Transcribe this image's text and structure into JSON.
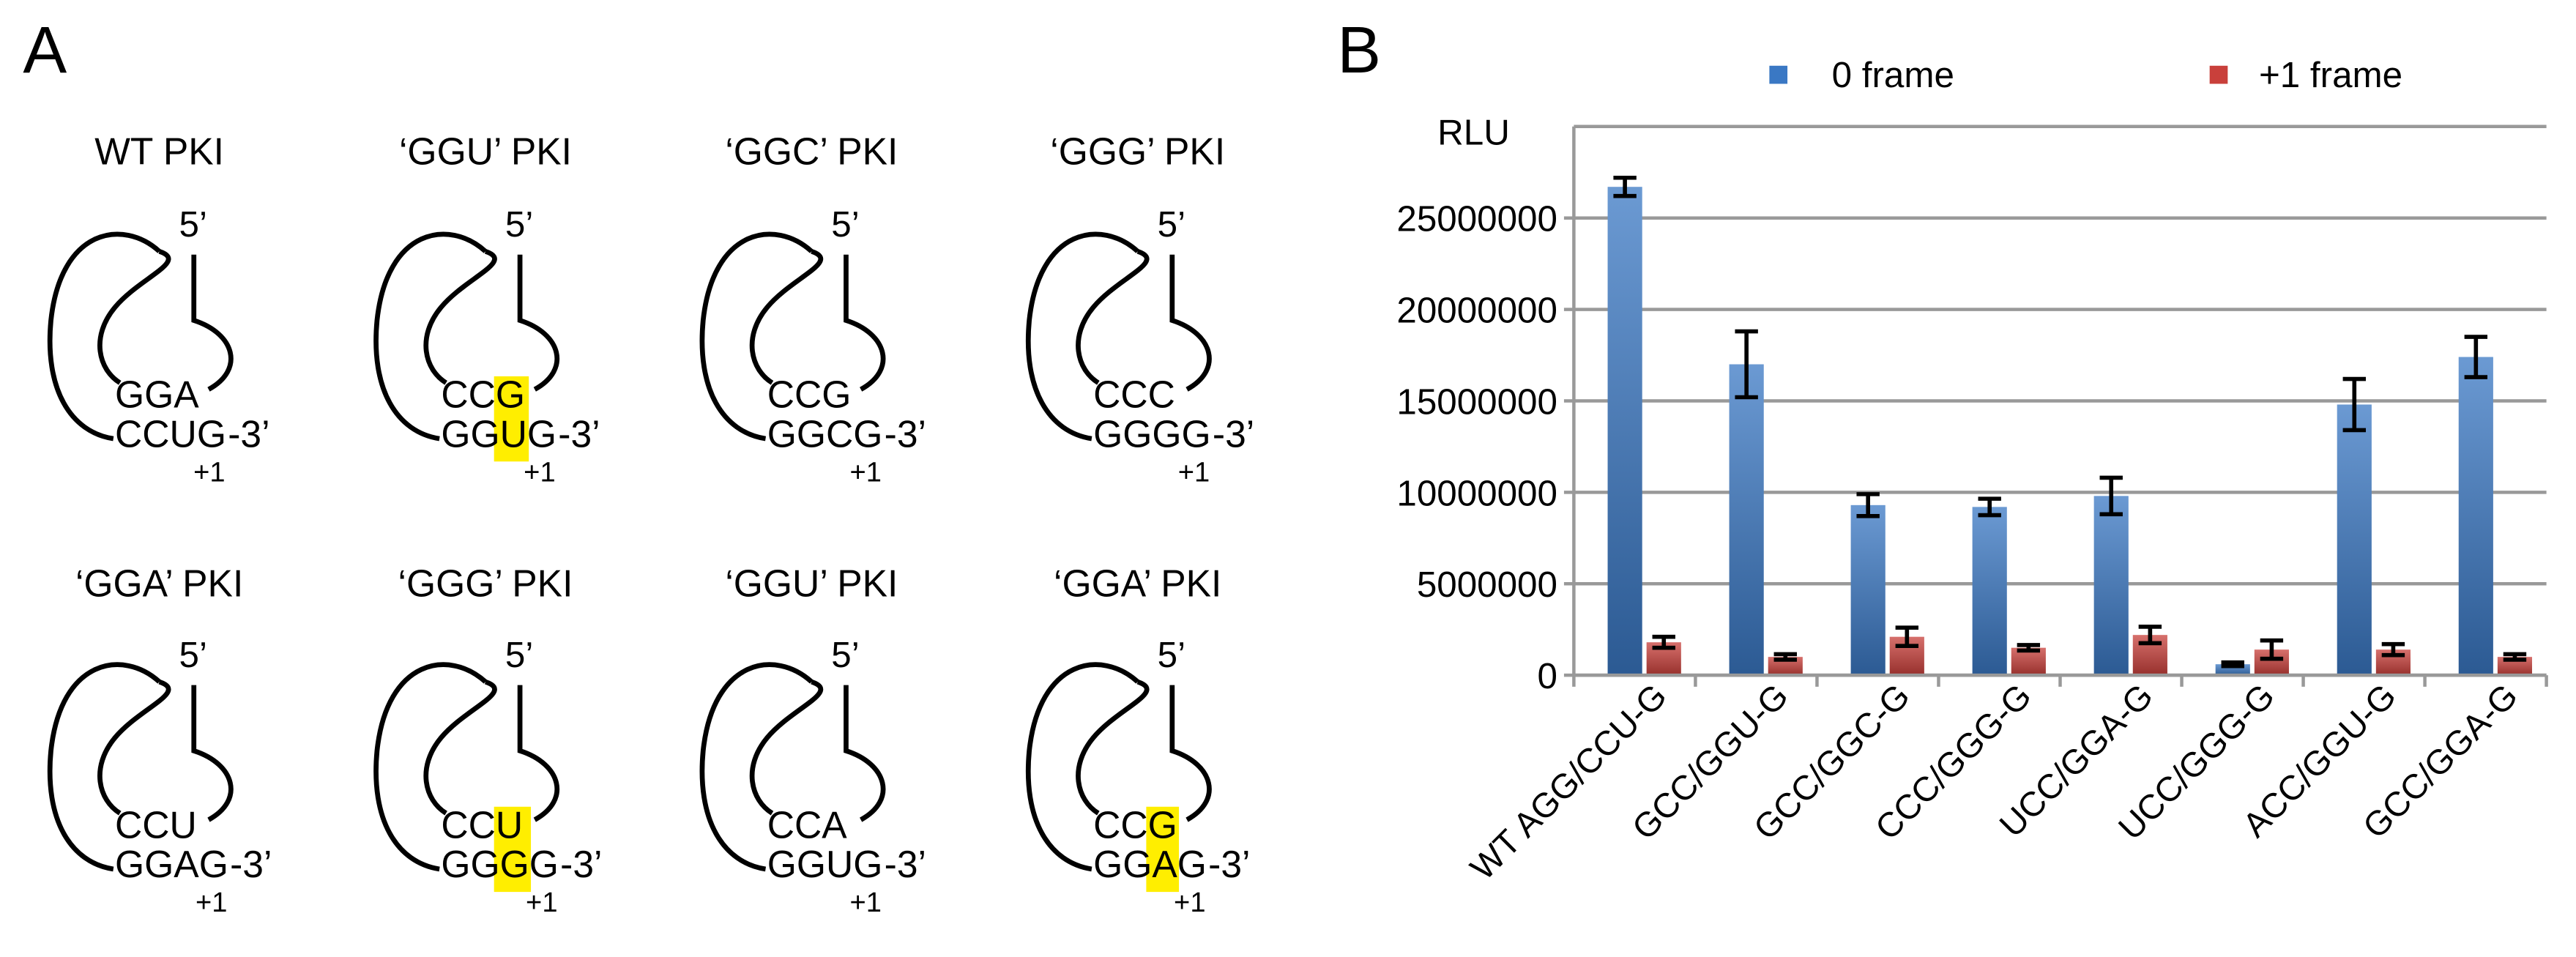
{
  "panel_a": {
    "label": "A",
    "diagrams": [
      {
        "title": "WT PKI",
        "five_prime": "5’",
        "top": "GGA",
        "bottom": "CCUG",
        "three_prime": "-3’",
        "plus_one": "+1",
        "highlight": false
      },
      {
        "title": "‘GGU’ PKI",
        "five_prime": "5’",
        "top": "CCG",
        "bottom": "GGUG",
        "three_prime": "-3’",
        "plus_one": "+1",
        "highlight": true
      },
      {
        "title": "‘GGC’ PKI",
        "five_prime": "5’",
        "top": "CCG",
        "bottom": "GGCG",
        "three_prime": "-3’",
        "plus_one": "+1",
        "highlight": false
      },
      {
        "title": "‘GGG’ PKI",
        "five_prime": "5’",
        "top": "CCC",
        "bottom": "GGGG",
        "three_prime": "-3’",
        "plus_one": "+1",
        "highlight": false
      },
      {
        "title": "‘GGA’ PKI",
        "five_prime": "5’",
        "top": "CCU",
        "bottom": "GGAG",
        "three_prime": "-3’",
        "plus_one": "+1",
        "highlight": false
      },
      {
        "title": "‘GGG’ PKI",
        "five_prime": "5’",
        "top": "CCU",
        "bottom": "GGGG",
        "three_prime": "-3’",
        "plus_one": "+1",
        "highlight": true
      },
      {
        "title": "‘GGU’ PKI",
        "five_prime": "5’",
        "top": "CCA",
        "bottom": "GGUG",
        "three_prime": "-3’",
        "plus_one": "+1",
        "highlight": false
      },
      {
        "title": "‘GGA’ PKI",
        "five_prime": "5’",
        "top": "CCG",
        "bottom": "GGAG",
        "three_prime": "-3’",
        "plus_one": "+1",
        "highlight": true
      }
    ],
    "highlight_color": "#ffee00"
  },
  "chart_data": {
    "type": "bar",
    "panel_label": "B",
    "ylabel": "RLU",
    "categories": [
      "WT AGG/CCU-G",
      "GCC/GGU-G",
      "GCC/GGC-G",
      "CCC/GGG-G",
      "UCC/GGA-G",
      "UCC/GGG-G",
      "ACC/GGU-G",
      "GCC/GGA-G"
    ],
    "series": [
      {
        "name": "0 frame",
        "color": "#3a78c4",
        "values": [
          26700000,
          17000000,
          9300000,
          9200000,
          9800000,
          600000,
          14800000,
          17400000
        ],
        "errors": [
          500000,
          1800000,
          600000,
          450000,
          1000000,
          100000,
          1400000,
          1100000
        ]
      },
      {
        "name": "+1 frame",
        "color": "#c9403b",
        "values": [
          1800000,
          1000000,
          2100000,
          1500000,
          2200000,
          1400000,
          1400000,
          1000000
        ],
        "errors": [
          300000,
          150000,
          500000,
          150000,
          450000,
          500000,
          300000,
          150000
        ]
      }
    ],
    "ylim": [
      0,
      30000000
    ],
    "yticks": [
      0,
      5000000,
      10000000,
      15000000,
      20000000,
      25000000
    ],
    "grid": true,
    "legend": "top"
  }
}
